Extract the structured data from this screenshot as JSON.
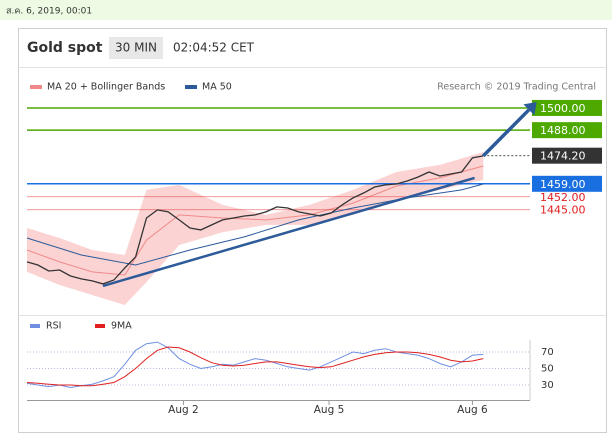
{
  "page_date": "ส.ค. 6, 2019, 00:01",
  "chart_data": [
    {
      "type": "line",
      "title": "Gold spot",
      "interval": "30 MIN",
      "time": "02:04:52 CET",
      "credit": "Research © 2019 Trading Central",
      "xlim": [
        0,
        46.3
      ],
      "ylim": [
        1393.5,
        1507
      ],
      "price": {
        "color": "#333333",
        "x": [
          0,
          1,
          2,
          3,
          4,
          5,
          6,
          7,
          8,
          9,
          10,
          11,
          12,
          13,
          14,
          15,
          16,
          17,
          18,
          19,
          20,
          21,
          22,
          23,
          24,
          25,
          26,
          27,
          28,
          29,
          30,
          31,
          32,
          33,
          34,
          35,
          36,
          37,
          38,
          39,
          40,
          41,
          42
        ],
        "values": [
          1416.8,
          1415.1,
          1411.9,
          1412.4,
          1409.2,
          1407.6,
          1406.5,
          1404.9,
          1407.0,
          1413.5,
          1419.5,
          1440.5,
          1444.9,
          1443.8,
          1439.5,
          1435.1,
          1434.1,
          1436.8,
          1439.5,
          1440.5,
          1441.6,
          1442.2,
          1443.8,
          1446.5,
          1445.9,
          1443.8,
          1442.7,
          1441.6,
          1443.2,
          1447.6,
          1451.4,
          1454.1,
          1457.3,
          1458.4,
          1458.9,
          1460.5,
          1462.7,
          1465.4,
          1463.2,
          1464.3,
          1465.4,
          1473.0,
          1474.1
        ]
      },
      "bands": {
        "name": "MA 20 + Bollinger Bands",
        "color": "#f08a8a",
        "fill": "#fbd3d3",
        "x": [
          0,
          3,
          6,
          9,
          11,
          14,
          18,
          22,
          26,
          30,
          34,
          38,
          42
        ],
        "upper": [
          1435.1,
          1429.7,
          1423.2,
          1420.5,
          1455.7,
          1458.4,
          1447.6,
          1442.2,
          1447.6,
          1455.7,
          1465.4,
          1469.2,
          1476.2
        ],
        "middle": [
          1423.2,
          1416.8,
          1411.4,
          1409.7,
          1428.6,
          1442.2,
          1440.5,
          1439.5,
          1442.2,
          1448.6,
          1457.8,
          1462.2,
          1468.6
        ],
        "lower": [
          1411.4,
          1404.3,
          1398.9,
          1393.5,
          1405.9,
          1425.9,
          1432.8,
          1436.8,
          1436.8,
          1442.2,
          1450.3,
          1455.7,
          1461.1
        ]
      },
      "ma": {
        "name": "MA 50",
        "color": "#2d5b9a",
        "x": [
          0,
          5,
          10,
          15,
          20,
          25,
          30,
          35,
          40,
          42
        ],
        "values": [
          1429.7,
          1420.5,
          1415.1,
          1423.2,
          1430.3,
          1439.5,
          1445.9,
          1451.4,
          1455.7,
          1458.9
        ]
      },
      "trendline": {
        "color": "#2d5b9a",
        "x": [
          7,
          41.2
        ],
        "values": [
          1403.8,
          1462.2
        ]
      },
      "arrow": {
        "color": "#2d5b9a",
        "x": [
          42,
          46.2
        ],
        "values": [
          1474.1,
          1499
        ]
      },
      "levels": [
        {
          "value": 1500,
          "label": "1500.00",
          "color": "#4da800",
          "boxed": true,
          "dotted": false
        },
        {
          "value": 1488,
          "label": "1488.00",
          "color": "#4da800",
          "boxed": true,
          "dotted": false
        },
        {
          "value": 1474.2,
          "label": "1474.20",
          "color": "#333333",
          "boxed": true,
          "dotted": true
        },
        {
          "value": 1459,
          "label": "1459.00",
          "color": "#1a6fe0",
          "boxed": true,
          "dotted": false
        },
        {
          "value": 1452,
          "label": "1452.00",
          "color": "#e02020",
          "boxed": false,
          "dotted": false
        },
        {
          "value": 1445,
          "label": "1445.00",
          "color": "#e02020",
          "boxed": false,
          "dotted": false
        }
      ]
    },
    {
      "type": "line",
      "xlim": [
        0,
        46.3
      ],
      "ylim": [
        11.8,
        84.5
      ],
      "yticks": [
        70,
        50,
        30
      ],
      "xticks": [
        {
          "value": 14.4,
          "label": "Aug 2"
        },
        {
          "value": 27.8,
          "label": "Aug 5"
        },
        {
          "value": 41,
          "label": "Aug 6"
        }
      ],
      "x": [
        0,
        1,
        2,
        3,
        4,
        5,
        6,
        7,
        8,
        9,
        10,
        11,
        12,
        13,
        14,
        15,
        16,
        17,
        18,
        19,
        20,
        21,
        22,
        23,
        24,
        25,
        26,
        27,
        28,
        29,
        30,
        31,
        32,
        33,
        34,
        35,
        36,
        37,
        38,
        39,
        40,
        41,
        42
      ],
      "series": [
        {
          "name": "RSI",
          "color": "#6f8fe0",
          "values": [
            32,
            30,
            28,
            30,
            27,
            29,
            31,
            35,
            40,
            55,
            72,
            80,
            82,
            75,
            62,
            55,
            50,
            52,
            55,
            54,
            58,
            62,
            60,
            56,
            52,
            50,
            48,
            52,
            58,
            64,
            70,
            68,
            72,
            74,
            70,
            68,
            66,
            62,
            56,
            52,
            58,
            66,
            67
          ]
        },
        {
          "name": "9MA",
          "color": "#e02020",
          "values": [
            33,
            32,
            31,
            30,
            30,
            29,
            29,
            31,
            33,
            40,
            50,
            62,
            72,
            76,
            75,
            70,
            63,
            57,
            54,
            53,
            54,
            56,
            58,
            58,
            56,
            54,
            52,
            51,
            52,
            56,
            60,
            64,
            67,
            69,
            70,
            70,
            69,
            67,
            64,
            60,
            58,
            59,
            62
          ]
        }
      ]
    }
  ]
}
